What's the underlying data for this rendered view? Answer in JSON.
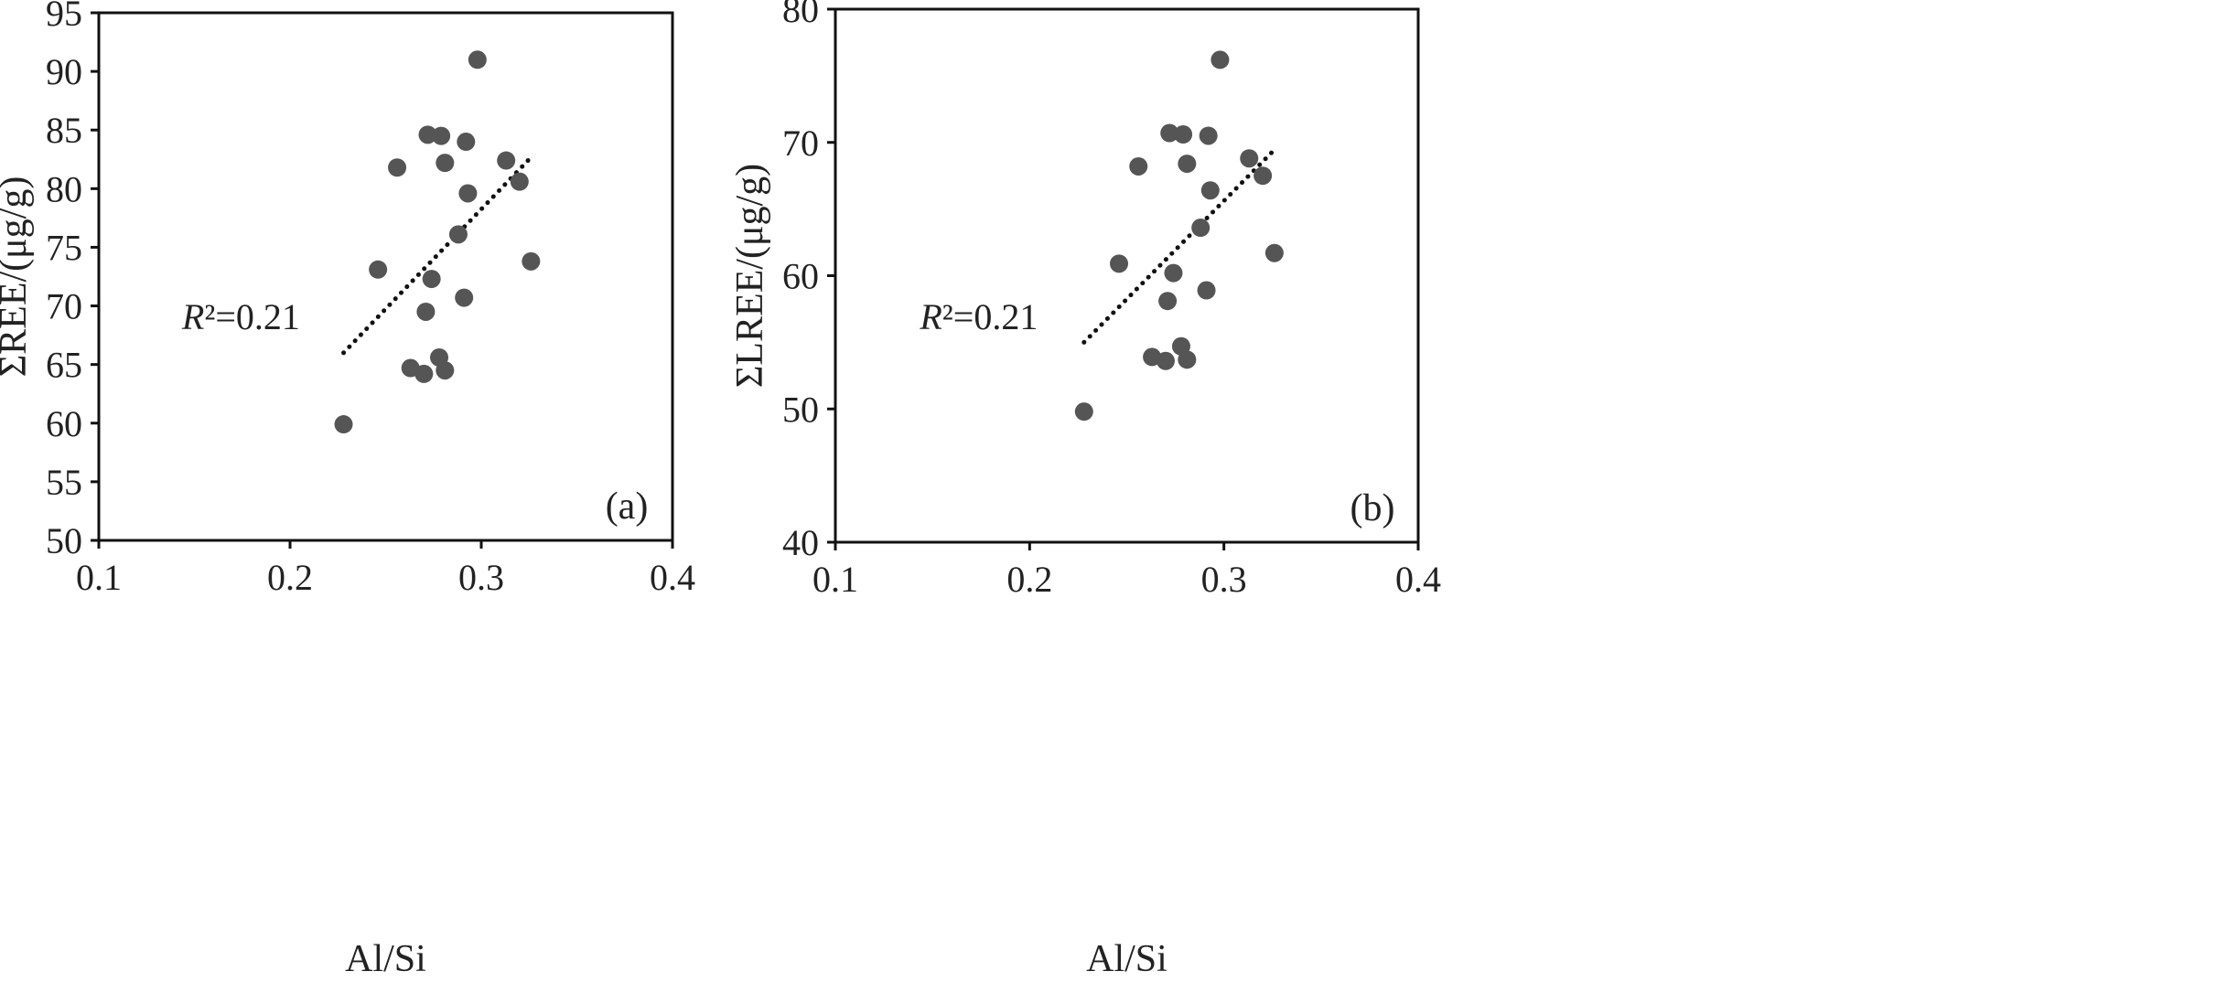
{
  "chart_data": [
    {
      "type": "scatter",
      "panel_label": "(a)",
      "xlabel": "Al/Si",
      "ylabel": "ΣREE/(μg/g)",
      "xlim": [
        0.1,
        0.4
      ],
      "ylim": [
        50,
        95
      ],
      "xticks": [
        "0.1",
        "0.2",
        "0.3",
        "0.4"
      ],
      "yticks": [
        "50",
        "55",
        "60",
        "65",
        "70",
        "75",
        "80",
        "85",
        "90",
        "95"
      ],
      "annotation": {
        "symbol": "R",
        "rest": "²=0.21"
      },
      "trendline": {
        "style": "dotted",
        "x": [
          0.228,
          0.325
        ],
        "y": [
          66.0,
          82.5
        ]
      },
      "points": {
        "x": [
          0.228,
          0.246,
          0.256,
          0.263,
          0.27,
          0.271,
          0.272,
          0.274,
          0.278,
          0.279,
          0.281,
          0.281,
          0.288,
          0.291,
          0.292,
          0.293,
          0.298,
          0.313,
          0.32,
          0.326
        ],
        "y": [
          59.9,
          73.1,
          81.8,
          64.7,
          64.2,
          69.5,
          84.6,
          72.3,
          65.6,
          84.5,
          82.2,
          64.5,
          76.1,
          70.7,
          84.0,
          79.6,
          91.0,
          82.4,
          80.6,
          73.8
        ]
      },
      "colors": {
        "point": "#555555",
        "trendline": "#111111",
        "frame": "#111111"
      }
    },
    {
      "type": "scatter",
      "panel_label": "(b)",
      "xlabel": "Al/Si",
      "ylabel": "ΣLREE/(μg/g)",
      "xlim": [
        0.1,
        0.4
      ],
      "ylim": [
        40,
        80
      ],
      "xticks": [
        "0.1",
        "0.2",
        "0.3",
        "0.4"
      ],
      "yticks": [
        "40",
        "50",
        "60",
        "70",
        "80"
      ],
      "annotation": {
        "symbol": "R",
        "rest": "²=0.21"
      },
      "trendline": {
        "style": "dotted",
        "x": [
          0.228,
          0.325
        ],
        "y": [
          55.0,
          69.3
        ]
      },
      "points": {
        "x": [
          0.228,
          0.246,
          0.256,
          0.263,
          0.27,
          0.271,
          0.272,
          0.274,
          0.278,
          0.279,
          0.281,
          0.281,
          0.288,
          0.291,
          0.292,
          0.293,
          0.298,
          0.313,
          0.32,
          0.326
        ],
        "y": [
          49.8,
          60.9,
          68.2,
          53.9,
          53.6,
          58.1,
          70.7,
          60.2,
          54.7,
          70.6,
          68.4,
          53.7,
          63.6,
          58.9,
          70.5,
          66.4,
          76.2,
          68.8,
          67.5,
          61.7
        ]
      },
      "colors": {
        "point": "#555555",
        "trendline": "#111111",
        "frame": "#111111"
      }
    }
  ]
}
